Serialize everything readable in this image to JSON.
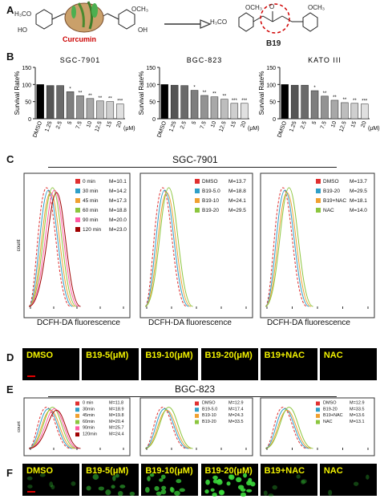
{
  "panels": {
    "a": "A",
    "b": "B",
    "c": "C",
    "d": "D",
    "e": "E",
    "f": "F"
  },
  "structures": {
    "left": "Curcumin",
    "right": "B19"
  },
  "chemical": {
    "h3co": "H₃CO",
    "ho": "HO",
    "och3": "OCH₃",
    "oh": "OH",
    "o": "O"
  },
  "colors": {
    "curcumin": "#cc0000",
    "annotation": "#d00000",
    "micro_label": "#f2f200",
    "scale_bar": "#e00000"
  },
  "bar_y_label": "Survival Rate%",
  "bar_unit": "(μM)",
  "cell_lines": {
    "sgc": "SGC-7901",
    "bgc": "BGC-823",
    "kato": "KATO III"
  },
  "flow_x_label": "DCFH-DA fluorescence",
  "flow_y_label": "count",
  "chart_data": [
    {
      "type": "bar",
      "title": "SGC-7901",
      "ylabel": "Survival Rate%",
      "categories": [
        "DMSO",
        "1.25",
        "2.5",
        "5",
        "7.5",
        "10",
        "12.5",
        "15",
        "20"
      ],
      "values": [
        100,
        97,
        97,
        79,
        67,
        59,
        52,
        50,
        43
      ],
      "ylim": [
        0,
        150
      ],
      "yticks": [
        0,
        50,
        100,
        150
      ],
      "sig": [
        "",
        "",
        "",
        "*",
        "**",
        "**",
        "**",
        "**",
        "***"
      ]
    },
    {
      "type": "bar",
      "title": "BGC-823",
      "ylabel": "Survival Rate%",
      "categories": [
        "DMSO",
        "1.25",
        "2.5",
        "5",
        "7.5",
        "10",
        "12.5",
        "15",
        "20"
      ],
      "values": [
        100,
        98,
        97,
        83,
        68,
        64,
        57,
        45,
        45
      ],
      "ylim": [
        0,
        150
      ],
      "yticks": [
        0,
        50,
        100,
        150
      ],
      "sig": [
        "",
        "",
        "",
        "*",
        "**",
        "**",
        "**",
        "***",
        "***"
      ]
    },
    {
      "type": "bar",
      "title": "KATO III",
      "ylabel": "Survival Rate%",
      "categories": [
        "DMSO",
        "1.25",
        "2.5",
        "5",
        "7.5",
        "10",
        "12.5",
        "15",
        "20"
      ],
      "values": [
        100,
        98,
        98,
        82,
        66,
        54,
        47,
        45,
        43
      ],
      "ylim": [
        0,
        150
      ],
      "yticks": [
        0,
        50,
        100,
        150
      ],
      "sig": [
        "",
        "",
        "",
        "*",
        "**",
        "**",
        "**",
        "**",
        "***"
      ]
    }
  ],
  "flow_c": [
    {
      "legend": [
        {
          "name": "0  min",
          "value": "M=10.1",
          "color": "#e03030"
        },
        {
          "name": "30  min",
          "value": "M=14.2",
          "color": "#2f9fc7"
        },
        {
          "name": "45  min",
          "value": "M=17.3",
          "color": "#f0a030"
        },
        {
          "name": "60  min",
          "value": "M=18.8",
          "color": "#8cc63f"
        },
        {
          "name": "90  min",
          "value": "M=20.0",
          "color": "#ff5aa5"
        },
        {
          "name": "120  min",
          "value": "M=23.0",
          "color": "#a00000"
        }
      ]
    },
    {
      "legend": [
        {
          "name": "DMSO",
          "value": "M=13.7",
          "color": "#e03030"
        },
        {
          "name": "B19-5.0",
          "value": "M=18.8",
          "color": "#2f9fc7"
        },
        {
          "name": "B19-10",
          "value": "M=24.1",
          "color": "#f0a030"
        },
        {
          "name": "B19-20",
          "value": "M=29.5",
          "color": "#8cc63f"
        }
      ]
    },
    {
      "legend": [
        {
          "name": "DMSO",
          "value": "M=13.7",
          "color": "#e03030"
        },
        {
          "name": "B19-20",
          "value": "M=29.5",
          "color": "#2f9fc7"
        },
        {
          "name": "B19+NAC",
          "value": "M=18.1",
          "color": "#f0a030"
        },
        {
          "name": "NAC",
          "value": "M=14.0",
          "color": "#8cc63f"
        }
      ]
    }
  ],
  "flow_e": [
    {
      "legend": [
        {
          "name": "0  min",
          "value": "M=11.8",
          "color": "#e03030"
        },
        {
          "name": "30min",
          "value": "M=18.9",
          "color": "#2f9fc7"
        },
        {
          "name": "45min",
          "value": "M=19.8",
          "color": "#f0a030"
        },
        {
          "name": "60min",
          "value": "M=20.4",
          "color": "#8cc63f"
        },
        {
          "name": "90min",
          "value": "M=25.7",
          "color": "#ff5aa5"
        },
        {
          "name": "120min",
          "value": "M=24.4",
          "color": "#a00000"
        }
      ]
    },
    {
      "legend": [
        {
          "name": "DMSO",
          "value": "M=12.9",
          "color": "#e03030"
        },
        {
          "name": "B19-5.0",
          "value": "M=17.4",
          "color": "#2f9fc7"
        },
        {
          "name": "B19-10",
          "value": "M=24.3",
          "color": "#f0a030"
        },
        {
          "name": "B19-20",
          "value": "M=33.5",
          "color": "#8cc63f"
        }
      ]
    },
    {
      "legend": [
        {
          "name": "DMSO",
          "value": "M=12.9",
          "color": "#e03030"
        },
        {
          "name": "B19-20",
          "value": "M=33.5",
          "color": "#2f9fc7"
        },
        {
          "name": "B19+NAC",
          "value": "M=13.6",
          "color": "#f0a030"
        },
        {
          "name": "NAC",
          "value": "M=13.1",
          "color": "#8cc63f"
        }
      ]
    }
  ],
  "micro_d": [
    "DMSO",
    "B19-5(μM)",
    "B19-10(μM)",
    "B19-20(μM)",
    "B19+NAC",
    "NAC"
  ],
  "micro_f": [
    "DMSO",
    "B19-5(μM)",
    "B19-10(μM)",
    "B19-20(μM)",
    "B19+NAC",
    "NAC"
  ]
}
